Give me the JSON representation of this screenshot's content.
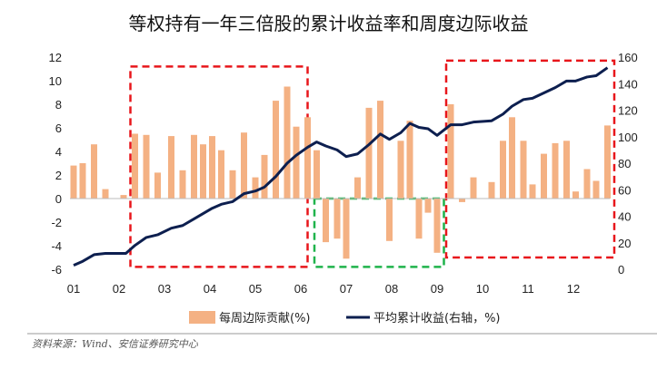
{
  "chart_data": {
    "type": "bar+line",
    "title": "等权持有一年三倍股的累计收益率和周度边际收益",
    "categories": [
      "01",
      "02",
      "03",
      "04",
      "05",
      "06",
      "07",
      "08",
      "09",
      "10",
      "11",
      "12"
    ],
    "left_axis": {
      "ylim": [
        -6,
        12
      ],
      "ticks": [
        -6,
        -4,
        -2,
        0,
        2,
        4,
        6,
        8,
        10,
        12
      ]
    },
    "right_axis": {
      "ylim": [
        0,
        160
      ],
      "ticks": [
        0,
        20,
        40,
        60,
        80,
        100,
        120,
        140,
        160
      ]
    },
    "x_range": [
      1,
      12.8
    ],
    "series": [
      {
        "name": "每周边际贡献(%)",
        "type": "bar",
        "axis": "left",
        "color": "#f4b183",
        "points": [
          {
            "x": 1.0,
            "y": 2.8
          },
          {
            "x": 1.2,
            "y": 3.0
          },
          {
            "x": 1.45,
            "y": 4.6
          },
          {
            "x": 1.7,
            "y": 0.8
          },
          {
            "x": 2.1,
            "y": 0.3
          },
          {
            "x": 2.35,
            "y": 5.5
          },
          {
            "x": 2.6,
            "y": 5.4
          },
          {
            "x": 2.85,
            "y": 2.2
          },
          {
            "x": 3.15,
            "y": 5.3
          },
          {
            "x": 3.4,
            "y": 2.4
          },
          {
            "x": 3.65,
            "y": 5.4
          },
          {
            "x": 3.85,
            "y": 4.6
          },
          {
            "x": 4.05,
            "y": 5.3
          },
          {
            "x": 4.25,
            "y": 4.1
          },
          {
            "x": 4.5,
            "y": 2.4
          },
          {
            "x": 4.75,
            "y": 5.6
          },
          {
            "x": 5.0,
            "y": 1.8
          },
          {
            "x": 5.2,
            "y": 3.7
          },
          {
            "x": 5.45,
            "y": 8.3
          },
          {
            "x": 5.7,
            "y": 9.5
          },
          {
            "x": 5.9,
            "y": 6.1
          },
          {
            "x": 6.15,
            "y": 6.9
          },
          {
            "x": 6.35,
            "y": 4.1
          },
          {
            "x": 6.55,
            "y": -3.7
          },
          {
            "x": 6.8,
            "y": -3.4
          },
          {
            "x": 7.0,
            "y": -5.1
          },
          {
            "x": 7.25,
            "y": 1.8
          },
          {
            "x": 7.5,
            "y": 7.7
          },
          {
            "x": 7.75,
            "y": 8.3
          },
          {
            "x": 7.95,
            "y": -3.6
          },
          {
            "x": 8.2,
            "y": 4.9
          },
          {
            "x": 8.4,
            "y": 6.6
          },
          {
            "x": 8.6,
            "y": -3.4
          },
          {
            "x": 8.8,
            "y": -1.2
          },
          {
            "x": 9.0,
            "y": -4.6
          },
          {
            "x": 9.3,
            "y": 8.0
          },
          {
            "x": 9.55,
            "y": -0.3
          },
          {
            "x": 9.8,
            "y": 1.8
          },
          {
            "x": 10.2,
            "y": 1.4
          },
          {
            "x": 10.45,
            "y": 4.9
          },
          {
            "x": 10.65,
            "y": 6.9
          },
          {
            "x": 10.9,
            "y": 4.9
          },
          {
            "x": 11.1,
            "y": 1.2
          },
          {
            "x": 11.35,
            "y": 3.8
          },
          {
            "x": 11.6,
            "y": 4.7
          },
          {
            "x": 11.85,
            "y": 4.9
          },
          {
            "x": 12.05,
            "y": 0.6
          },
          {
            "x": 12.3,
            "y": 2.5
          },
          {
            "x": 12.5,
            "y": 1.5
          },
          {
            "x": 12.75,
            "y": 6.2
          }
        ]
      },
      {
        "name": "平均累计收益(右轴，%)",
        "type": "line",
        "axis": "right",
        "color": "#0d1f4f",
        "points": [
          {
            "x": 1.0,
            "y": 3
          },
          {
            "x": 1.2,
            "y": 6
          },
          {
            "x": 1.45,
            "y": 11
          },
          {
            "x": 1.7,
            "y": 12
          },
          {
            "x": 2.0,
            "y": 12
          },
          {
            "x": 2.15,
            "y": 12
          },
          {
            "x": 2.35,
            "y": 18
          },
          {
            "x": 2.6,
            "y": 24
          },
          {
            "x": 2.85,
            "y": 26
          },
          {
            "x": 3.15,
            "y": 31
          },
          {
            "x": 3.4,
            "y": 33
          },
          {
            "x": 3.65,
            "y": 38
          },
          {
            "x": 3.85,
            "y": 42
          },
          {
            "x": 4.05,
            "y": 46
          },
          {
            "x": 4.25,
            "y": 49
          },
          {
            "x": 4.5,
            "y": 51
          },
          {
            "x": 4.75,
            "y": 57
          },
          {
            "x": 5.0,
            "y": 59
          },
          {
            "x": 5.2,
            "y": 62
          },
          {
            "x": 5.45,
            "y": 70
          },
          {
            "x": 5.7,
            "y": 80
          },
          {
            "x": 5.9,
            "y": 86
          },
          {
            "x": 6.15,
            "y": 92
          },
          {
            "x": 6.35,
            "y": 96
          },
          {
            "x": 6.55,
            "y": 93
          },
          {
            "x": 6.8,
            "y": 90
          },
          {
            "x": 7.0,
            "y": 85
          },
          {
            "x": 7.25,
            "y": 87
          },
          {
            "x": 7.5,
            "y": 94
          },
          {
            "x": 7.75,
            "y": 102
          },
          {
            "x": 7.95,
            "y": 98
          },
          {
            "x": 8.2,
            "y": 103
          },
          {
            "x": 8.4,
            "y": 110
          },
          {
            "x": 8.6,
            "y": 107
          },
          {
            "x": 8.8,
            "y": 106
          },
          {
            "x": 9.0,
            "y": 101
          },
          {
            "x": 9.3,
            "y": 109
          },
          {
            "x": 9.55,
            "y": 109
          },
          {
            "x": 9.8,
            "y": 111
          },
          {
            "x": 10.2,
            "y": 112
          },
          {
            "x": 10.45,
            "y": 117
          },
          {
            "x": 10.65,
            "y": 123
          },
          {
            "x": 10.9,
            "y": 128
          },
          {
            "x": 11.1,
            "y": 129
          },
          {
            "x": 11.35,
            "y": 133
          },
          {
            "x": 11.6,
            "y": 137
          },
          {
            "x": 11.85,
            "y": 142
          },
          {
            "x": 12.05,
            "y": 142
          },
          {
            "x": 12.3,
            "y": 145
          },
          {
            "x": 12.5,
            "y": 146
          },
          {
            "x": 12.75,
            "y": 152
          }
        ]
      }
    ],
    "highlight_boxes": [
      {
        "color": "#e8161b",
        "x_range": [
          2.25,
          6.15
        ],
        "ylim_left": [
          -5.8,
          11.2
        ]
      },
      {
        "color": "#1fb34b",
        "x_range": [
          6.3,
          9.15
        ],
        "ylim_left": [
          -5.8,
          0
        ]
      },
      {
        "color": "#e8161b",
        "x_range": [
          9.2,
          12.9
        ],
        "ylim_left": [
          -5.0,
          11.7
        ]
      }
    ],
    "grid": false,
    "legend_position": "bottom"
  },
  "source": "资料来源：Wind、安信证券研究中心"
}
